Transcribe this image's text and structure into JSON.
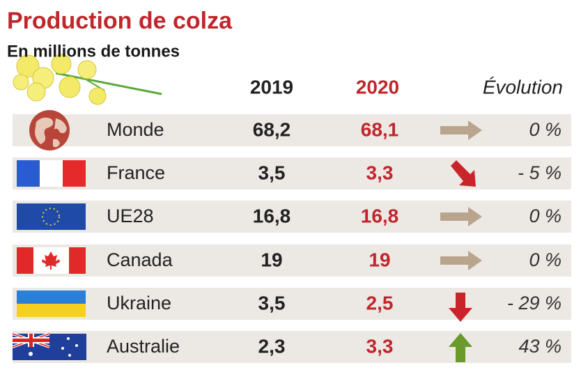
{
  "title": "Production de colza",
  "subtitle": "En millions de tonnes",
  "table": {
    "header": [
      "2019",
      "2020",
      "Évolution"
    ],
    "rows": [
      [
        "Monde",
        "68,2",
        "68,1",
        "0 %"
      ],
      [
        "France",
        "3,5",
        "3,3",
        "- 5 %"
      ],
      [
        "UE28",
        "16,8",
        "16,8",
        "0 %"
      ],
      [
        "Canada",
        "19",
        "19",
        "0 %"
      ],
      [
        "Ukraine",
        "3,5",
        "2,5",
        "- 29 %"
      ],
      [
        "Australie",
        "2,3",
        "3,3",
        "43 %"
      ]
    ]
  }
}
